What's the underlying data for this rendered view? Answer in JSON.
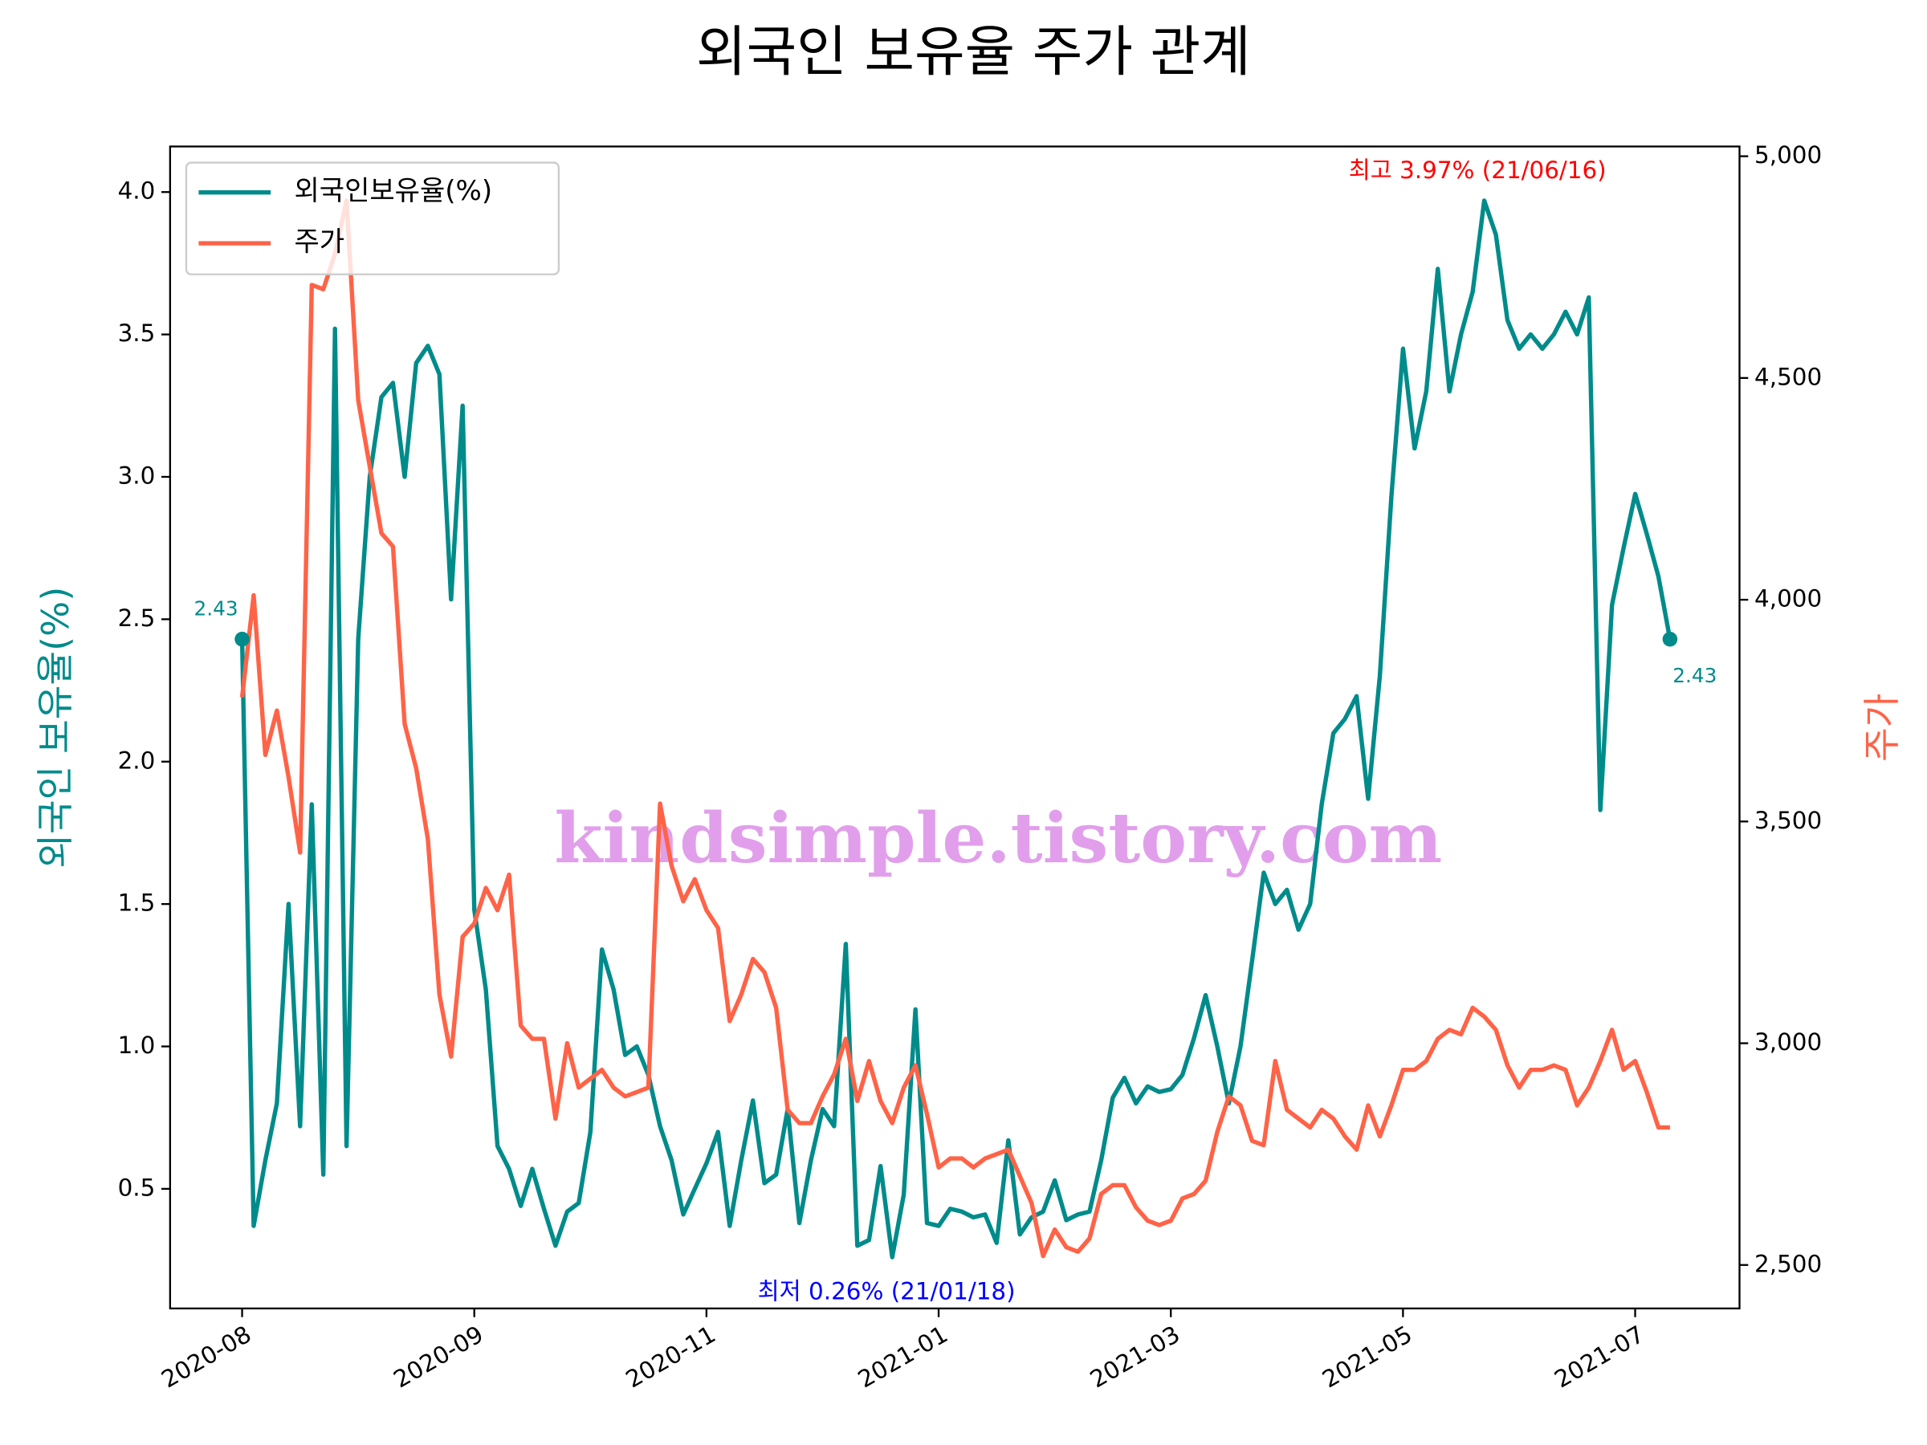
{
  "chart_data": {
    "type": "line",
    "title": "외국인 보유율 주가 관계",
    "ylabel": "외국인 보유율(%)",
    "y2label": "주가",
    "categories": [
      "2020-08",
      null,
      null,
      null,
      null,
      null,
      null,
      null,
      null,
      null,
      null,
      null,
      null,
      null,
      null,
      null,
      null,
      null,
      null,
      null,
      "2020-09",
      null,
      null,
      null,
      null,
      null,
      null,
      null,
      null,
      null,
      null,
      null,
      null,
      null,
      null,
      null,
      null,
      null,
      null,
      null,
      "2020-11",
      null,
      null,
      null,
      null,
      null,
      null,
      null,
      null,
      null,
      null,
      null,
      null,
      null,
      null,
      null,
      null,
      null,
      null,
      null,
      "2021-01",
      null,
      null,
      null,
      null,
      null,
      null,
      null,
      null,
      null,
      null,
      null,
      null,
      null,
      null,
      null,
      null,
      null,
      null,
      null,
      "2021-03",
      null,
      null,
      null,
      null,
      null,
      null,
      null,
      null,
      null,
      null,
      null,
      null,
      null,
      null,
      null,
      null,
      null,
      null,
      null,
      "2021-05",
      null,
      null,
      null,
      null,
      null,
      null,
      null,
      null,
      null,
      null,
      null,
      null,
      null,
      null,
      null,
      null,
      null,
      null,
      null,
      "2021-07",
      null,
      null,
      null
    ],
    "series": [
      {
        "name": "외국인보유율(%)",
        "color": "#008b8b",
        "axis": "y",
        "values": [
          2.43,
          0.37,
          0.6,
          0.8,
          1.5,
          0.72,
          1.85,
          0.55,
          3.52,
          0.65,
          2.43,
          3.0,
          3.28,
          3.33,
          3.0,
          3.4,
          3.46,
          3.36,
          2.57,
          3.25,
          1.48,
          1.2,
          0.65,
          0.57,
          0.44,
          0.57,
          0.43,
          0.3,
          0.42,
          0.45,
          0.7,
          1.34,
          1.2,
          0.97,
          1.0,
          0.9,
          0.72,
          0.6,
          0.41,
          0.5,
          0.59,
          0.7,
          0.37,
          0.6,
          0.81,
          0.52,
          0.55,
          0.78,
          0.38,
          0.6,
          0.78,
          0.72,
          1.36,
          0.3,
          0.32,
          0.58,
          0.26,
          0.48,
          1.13,
          0.38,
          0.37,
          0.43,
          0.42,
          0.4,
          0.41,
          0.31,
          0.67,
          0.34,
          0.4,
          0.42,
          0.53,
          0.39,
          0.41,
          0.42,
          0.6,
          0.82,
          0.89,
          0.8,
          0.86,
          0.84,
          0.85,
          0.9,
          1.03,
          1.18,
          1.0,
          0.8,
          1.0,
          1.3,
          1.61,
          1.5,
          1.55,
          1.41,
          1.5,
          1.85,
          2.1,
          2.15,
          2.23,
          1.87,
          2.3,
          2.93,
          3.45,
          3.1,
          3.3,
          3.73,
          3.3,
          3.5,
          3.65,
          3.97,
          3.85,
          3.55,
          3.45,
          3.5,
          3.45,
          3.5,
          3.58,
          3.5,
          3.63,
          1.83,
          2.55,
          2.75,
          2.94,
          2.8,
          2.65,
          2.43
        ]
      },
      {
        "name": "주가",
        "color": "#ff6347",
        "axis": "y2",
        "values": [
          3780,
          4010,
          3650,
          3750,
          3600,
          3430,
          4710,
          4700,
          4780,
          4900,
          4450,
          4300,
          4150,
          4120,
          3720,
          3620,
          3460,
          3110,
          2970,
          3240,
          3270,
          3350,
          3300,
          3380,
          3040,
          3010,
          3010,
          2830,
          3000,
          2900,
          2920,
          2940,
          2900,
          2880,
          2890,
          2900,
          3540,
          3400,
          3320,
          3370,
          3300,
          3260,
          3050,
          3110,
          3190,
          3160,
          3080,
          2850,
          2820,
          2820,
          2880,
          2930,
          3010,
          2870,
          2960,
          2870,
          2820,
          2900,
          2950,
          2840,
          2720,
          2740,
          2740,
          2720,
          2740,
          2750,
          2760,
          2700,
          2640,
          2520,
          2580,
          2540,
          2530,
          2560,
          2660,
          2680,
          2680,
          2630,
          2600,
          2590,
          2600,
          2650,
          2660,
          2690,
          2800,
          2880,
          2860,
          2780,
          2770,
          2960,
          2850,
          2830,
          2810,
          2850,
          2830,
          2790,
          2760,
          2860,
          2790,
          2860,
          2940,
          2940,
          2960,
          3010,
          3030,
          3020,
          3080,
          3060,
          3030,
          2950,
          2900,
          2940,
          2940,
          2950,
          2940,
          2860,
          2900,
          2960,
          3030,
          2940,
          2960,
          2890,
          2810,
          2810
        ]
      }
    ],
    "ylim": [
      0.08,
      4.16
    ],
    "yticks": [
      0.5,
      {
        "value": 1,
        "label": "1.0"
      },
      1.5,
      {
        "value": 2,
        "label": "2.0"
      },
      2.5,
      {
        "value": 3,
        "label": "3.0"
      },
      3.5,
      {
        "value": 4,
        "label": "4.0"
      }
    ],
    "y2lim": [
      2402,
      5022
    ],
    "y2ticks": [
      {
        "value": 2500,
        "label": "2,500"
      },
      {
        "value": 3000,
        "label": "3,000"
      },
      {
        "value": 3500,
        "label": "3,500"
      },
      {
        "value": 4000,
        "label": "4,000"
      },
      {
        "value": 4500,
        "label": "4,500"
      },
      {
        "value": 5000,
        "label": "5,000"
      }
    ],
    "legend": "upper left",
    "annotations": [
      "최고 3.97% (21/06/16)",
      "최저 0.26% (21/01/18)",
      "2.43",
      "2.43"
    ],
    "watermark": "kindsimple.tistory.com"
  }
}
